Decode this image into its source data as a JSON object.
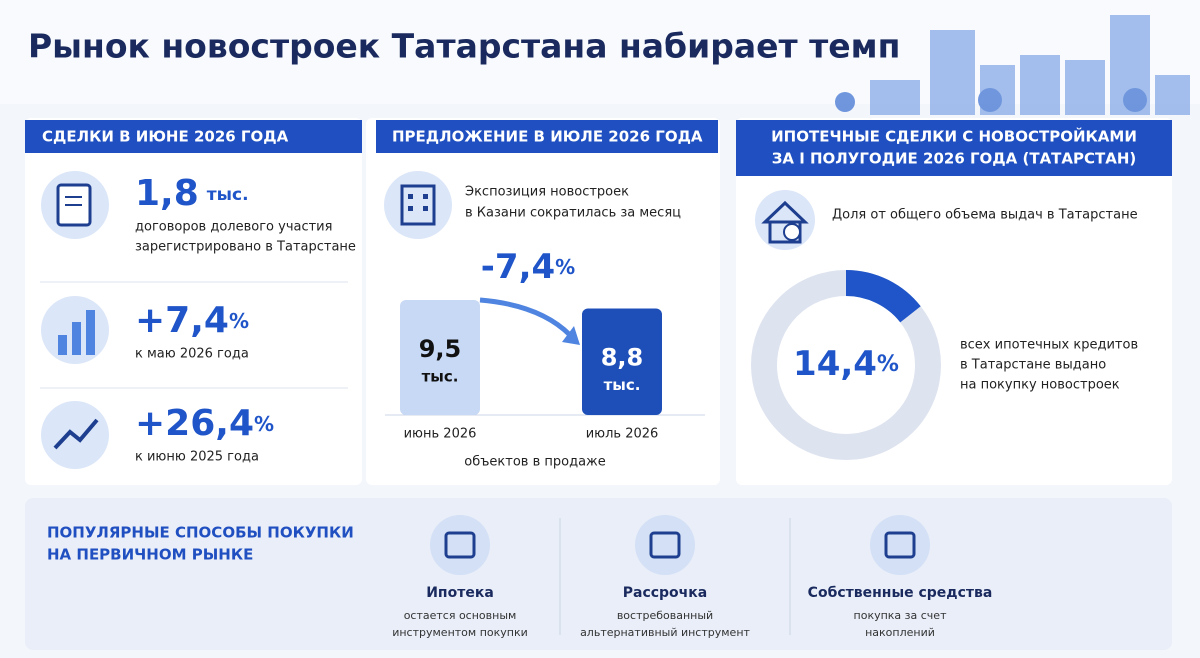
{
  "header": {
    "title": "Рынок новостроек Татарстана набирает темп"
  },
  "deals": {
    "title": "СДЕЛКИ В ИЮНЕ 2026 ГОДА",
    "items": [
      {
        "value": "1,8",
        "unit": "тыс.",
        "lines": [
          "договоров долевого участия",
          "зарегистрировано в Татарстане"
        ]
      },
      {
        "value": "+7,4",
        "unit": "%",
        "lines": [
          "к маю 2026 года"
        ]
      },
      {
        "value": "+26,4",
        "unit": "%",
        "lines": [
          "к июню 2025 года"
        ]
      }
    ]
  },
  "supply": {
    "title": "ПРЕДЛОЖЕНИЕ В ИЮЛЕ 2026 ГОДА",
    "lines": [
      "Экспозиция новостроек",
      "в Казани сократилась за месяц"
    ],
    "change": "-7,4",
    "change_unit": "%",
    "bars": [
      {
        "category": "июнь 2026",
        "value": 9.5,
        "value_label": "9,5",
        "unit": "тыс."
      },
      {
        "category": "июль 2026",
        "value": 8.8,
        "value_label": "8,8",
        "unit": "тыс."
      }
    ],
    "caption": "объектов в продаже"
  },
  "mortgage": {
    "title_lines": [
      "ИПОТЕЧНЫЕ СДЕЛКИ С НОВОСТРОЙКАМИ",
      "ЗА I ПОЛУГОДИЕ 2026 ГОДА (ТАТАРСТАН)"
    ],
    "subtitle": "Доля от общего объема выдач в Татарстане",
    "share": 14.4,
    "share_label": "14,4",
    "unit": "%",
    "lines": [
      "всех ипотечных кредитов",
      "в Татарстане выдано",
      "на покупку новостроек"
    ]
  },
  "methods": {
    "title_lines": [
      "ПОПУЛЯРНЫЕ СПОСОБЫ ПОКУПКИ",
      "НА ПЕРВИЧНОМ РЫНКЕ"
    ],
    "items": [
      {
        "title": "Ипотека",
        "lines": [
          "остается основным",
          "инструментом покупки"
        ]
      },
      {
        "title": "Рассрочка",
        "lines": [
          "востребованный",
          "альтернативный инструмент"
        ]
      },
      {
        "title": "Собственные средства",
        "lines": [
          "покупка за счет",
          "накоплений"
        ]
      }
    ]
  }
}
